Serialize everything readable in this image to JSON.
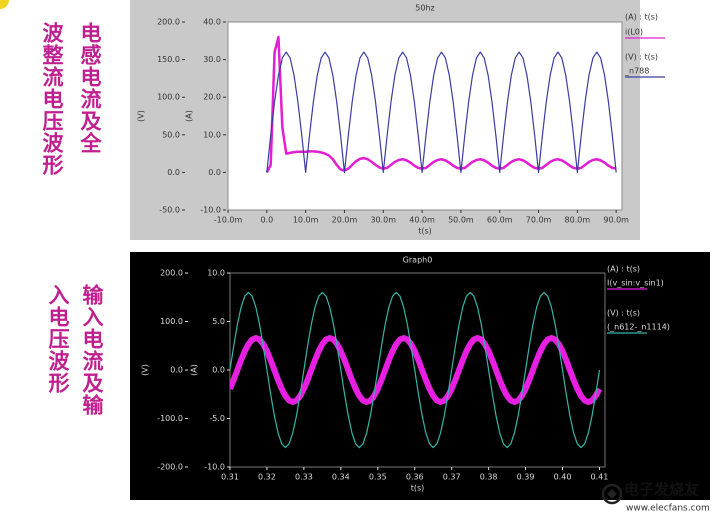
{
  "captions": [
    [
      "电感电流及全",
      "波整流电压波形"
    ],
    [
      "输入电流及输",
      "入电压波形"
    ]
  ],
  "watermark": {
    "name": "电子发烧友",
    "url": "www.elecfans.com"
  },
  "chart_data": [
    {
      "type": "line",
      "title": "50hz",
      "x_label": "t(s)",
      "y_label": "(V)",
      "y2_label": "(A)",
      "xlim": [
        -0.01,
        0.0915
      ],
      "xticks": [
        {
          "value": -0.01,
          "label": "-10.0m"
        },
        {
          "value": 0,
          "label": "0.0"
        },
        {
          "value": 0.01,
          "label": "10.0m"
        },
        {
          "value": 0.02,
          "label": "20.0m"
        },
        {
          "value": 0.03,
          "label": "30.0m"
        },
        {
          "value": 0.04,
          "label": "40.0m"
        },
        {
          "value": 0.05,
          "label": "50.0m"
        },
        {
          "value": 0.06,
          "label": "60.0m"
        },
        {
          "value": 0.07,
          "label": "70.0m"
        },
        {
          "value": 0.08,
          "label": "80.0m"
        },
        {
          "value": 0.09,
          "label": "90.0m"
        }
      ],
      "ylim": [
        -50,
        200
      ],
      "yticks": [
        {
          "value": -50,
          "label": "-50.0"
        },
        {
          "value": 0,
          "label": "0.0"
        },
        {
          "value": 50,
          "label": "50.0"
        },
        {
          "value": 100,
          "label": "100.0"
        },
        {
          "value": 150,
          "label": "150.0"
        },
        {
          "value": 200,
          "label": "200.0"
        }
      ],
      "y2lim": [
        -10,
        40
      ],
      "y2ticks": [
        {
          "value": -10,
          "label": "-10.0"
        },
        {
          "value": 0,
          "label": "0.0"
        },
        {
          "value": 10,
          "label": "10.0"
        },
        {
          "value": 20,
          "label": "20.0"
        },
        {
          "value": 30,
          "label": "30.0"
        },
        {
          "value": 40,
          "label": "40.0"
        }
      ],
      "x": [
        0,
        0.001,
        0.002,
        0.003,
        0.004,
        0.005,
        0.006,
        0.007,
        0.008,
        0.009,
        0.01,
        0.011,
        0.012,
        0.013,
        0.014,
        0.015,
        0.016,
        0.017,
        0.018,
        0.019,
        0.02,
        0.021,
        0.022,
        0.023,
        0.024,
        0.025,
        0.026,
        0.027,
        0.028,
        0.029,
        0.03,
        0.031,
        0.032,
        0.033,
        0.034,
        0.035,
        0.036,
        0.037,
        0.038,
        0.039,
        0.04,
        0.041,
        0.042,
        0.043,
        0.044,
        0.045,
        0.046,
        0.047,
        0.048,
        0.049,
        0.05,
        0.051,
        0.052,
        0.053,
        0.054,
        0.055,
        0.056,
        0.057,
        0.058,
        0.059,
        0.06,
        0.061,
        0.062,
        0.063,
        0.064,
        0.065,
        0.066,
        0.067,
        0.068,
        0.069,
        0.07,
        0.071,
        0.072,
        0.073,
        0.074,
        0.075,
        0.076,
        0.077,
        0.078,
        0.079,
        0.08,
        0.081,
        0.082,
        0.083,
        0.084,
        0.085,
        0.086,
        0.087,
        0.088,
        0.089,
        0.09
      ],
      "series": [
        {
          "header": "(A) : t(s)",
          "name": "i(L0)",
          "color": "#e21fd2",
          "axis": "y2",
          "width": 2.5,
          "values": [
            0,
            2,
            32,
            36,
            12,
            5,
            5.2,
            5.4,
            5.5,
            5.5,
            5.5,
            5.6,
            5.6,
            5.5,
            5.3,
            5,
            4.5,
            3.5,
            2,
            0.8,
            0.5,
            1,
            2,
            3,
            3.6,
            3.8,
            3.5,
            2.8,
            2,
            1.3,
            1,
            1.2,
            2,
            2.8,
            3.3,
            3.5,
            3.2,
            2.6,
            1.8,
            1.2,
            1,
            1.2,
            2,
            2.8,
            3.3,
            3.5,
            3.2,
            2.6,
            1.8,
            1.2,
            1,
            1.2,
            2,
            2.8,
            3.3,
            3.5,
            3.2,
            2.6,
            1.8,
            1.2,
            1,
            1.2,
            2,
            2.8,
            3.3,
            3.5,
            3.2,
            2.6,
            1.8,
            1.2,
            1,
            1.2,
            2,
            2.8,
            3.3,
            3.5,
            3.2,
            2.6,
            1.8,
            1.2,
            1,
            1.2,
            2,
            2.8,
            3.3,
            3.5,
            3.2,
            2.6,
            1.8,
            1.2,
            1
          ]
        },
        {
          "header": "(V) : t(s)",
          "name": "_n788",
          "color": "#3b3ba3",
          "width": 1.2,
          "values": [
            0,
            49.4,
            94,
            129.4,
            152.2,
            160,
            152.2,
            129.4,
            94,
            49.4,
            0,
            49.4,
            94,
            129.4,
            152.2,
            160,
            152.2,
            129.4,
            94,
            49.4,
            0,
            49.4,
            94,
            129.4,
            152.2,
            160,
            152.2,
            129.4,
            94,
            49.4,
            0,
            49.4,
            94,
            129.4,
            152.2,
            160,
            152.2,
            129.4,
            94,
            49.4,
            0,
            49.4,
            94,
            129.4,
            152.2,
            160,
            152.2,
            129.4,
            94,
            49.4,
            0,
            49.4,
            94,
            129.4,
            152.2,
            160,
            152.2,
            129.4,
            94,
            49.4,
            0,
            49.4,
            94,
            129.4,
            152.2,
            160,
            152.2,
            129.4,
            94,
            49.4,
            0,
            49.4,
            94,
            129.4,
            152.2,
            160,
            152.2,
            129.4,
            94,
            49.4,
            0,
            49.4,
            94,
            129.4,
            152.2,
            160,
            152.2,
            129.4,
            94,
            49.4,
            0
          ]
        }
      ]
    },
    {
      "type": "line",
      "title": "Graph0",
      "x_label": "t(s)",
      "y_label": "(V)",
      "y2_label": "(A)",
      "xlim": [
        0.31,
        0.4115
      ],
      "xticks": [
        0.31,
        0.32,
        0.33,
        0.34,
        0.35,
        0.36,
        0.37,
        0.38,
        0.39,
        {
          "value": 0.4,
          "label": "0.40"
        },
        0.41
      ],
      "ylim": [
        -200,
        200
      ],
      "yticks": [
        {
          "value": -200,
          "label": "-200.0"
        },
        {
          "value": -100,
          "label": "-100.0"
        },
        {
          "value": 0,
          "label": "0.0"
        },
        {
          "value": 100,
          "label": "100.0"
        },
        {
          "value": 200,
          "label": "200.0"
        }
      ],
      "y2lim": [
        -10,
        10
      ],
      "y2ticks": [
        {
          "value": -10,
          "label": "-10.0"
        },
        {
          "value": -5,
          "label": "-5.0"
        },
        {
          "value": 0,
          "label": "0.0"
        },
        {
          "value": 5,
          "label": "5.0"
        },
        {
          "value": 10,
          "label": "10.0"
        }
      ],
      "x": [
        0.31,
        0.311,
        0.312,
        0.313,
        0.314,
        0.315,
        0.316,
        0.317,
        0.318,
        0.319,
        0.32,
        0.321,
        0.322,
        0.323,
        0.324,
        0.325,
        0.326,
        0.327,
        0.328,
        0.329,
        0.33,
        0.331,
        0.332,
        0.333,
        0.334,
        0.335,
        0.336,
        0.337,
        0.338,
        0.339,
        0.34,
        0.341,
        0.342,
        0.343,
        0.344,
        0.345,
        0.346,
        0.347,
        0.348,
        0.349,
        0.35,
        0.351,
        0.352,
        0.353,
        0.354,
        0.355,
        0.356,
        0.357,
        0.358,
        0.359,
        0.36,
        0.361,
        0.362,
        0.363,
        0.364,
        0.365,
        0.366,
        0.367,
        0.368,
        0.369,
        0.37,
        0.371,
        0.372,
        0.373,
        0.374,
        0.375,
        0.376,
        0.377,
        0.378,
        0.379,
        0.38,
        0.381,
        0.382,
        0.383,
        0.384,
        0.385,
        0.386,
        0.387,
        0.388,
        0.389,
        0.39,
        0.391,
        0.392,
        0.393,
        0.394,
        0.395,
        0.396,
        0.397,
        0.398,
        0.399,
        0.4,
        0.401,
        0.402,
        0.403,
        0.404,
        0.405,
        0.406,
        0.407,
        0.408,
        0.409,
        0.41
      ],
      "series": [
        {
          "header": "(A) : t(s)",
          "name": "I(v_sin:v_sin1)",
          "color": "#e61fe0",
          "axis": "y2",
          "width": 6,
          "values": [
            -1.94,
            -1.02,
            0,
            1.02,
            1.94,
            2.67,
            3.14,
            3.3,
            3.14,
            2.67,
            1.94,
            1.02,
            0,
            -1.02,
            -1.94,
            -2.67,
            -3.14,
            -3.3,
            -3.14,
            -2.67,
            -1.94,
            -1.02,
            0,
            1.02,
            1.94,
            2.67,
            3.14,
            3.3,
            3.14,
            2.67,
            1.94,
            1.02,
            0,
            -1.02,
            -1.94,
            -2.67,
            -3.14,
            -3.3,
            -3.14,
            -2.67,
            -1.94,
            -1.02,
            0,
            1.02,
            1.94,
            2.67,
            3.14,
            3.3,
            3.14,
            2.67,
            1.94,
            1.02,
            0,
            -1.02,
            -1.94,
            -2.67,
            -3.14,
            -3.3,
            -3.14,
            -2.67,
            -1.94,
            -1.02,
            0,
            1.02,
            1.94,
            2.67,
            3.14,
            3.3,
            3.14,
            2.67,
            1.94,
            1.02,
            0,
            -1.02,
            -1.94,
            -2.67,
            -3.14,
            -3.3,
            -3.14,
            -2.67,
            -1.94,
            -1.02,
            0,
            1.02,
            1.94,
            2.67,
            3.14,
            3.3,
            3.14,
            2.67,
            1.94,
            1.02,
            0,
            -1.02,
            -1.94,
            -2.67,
            -3.14,
            -3.3,
            -3.14,
            -2.67,
            -1.94
          ]
        },
        {
          "header": "(V) : t(s)",
          "name": "(_n612-_n1114)",
          "color": "#35b5a4",
          "width": 1.2,
          "values": [
            0,
            49.4,
            94,
            129.4,
            152.2,
            160,
            152.2,
            129.4,
            94,
            49.4,
            0,
            -49.4,
            -94,
            -129.4,
            -152.2,
            -160,
            -152.2,
            -129.4,
            -94,
            -49.4,
            0,
            49.4,
            94,
            129.4,
            152.2,
            160,
            152.2,
            129.4,
            94,
            49.4,
            0,
            -49.4,
            -94,
            -129.4,
            -152.2,
            -160,
            -152.2,
            -129.4,
            -94,
            -49.4,
            0,
            49.4,
            94,
            129.4,
            152.2,
            160,
            152.2,
            129.4,
            94,
            49.4,
            0,
            -49.4,
            -94,
            -129.4,
            -152.2,
            -160,
            -152.2,
            -129.4,
            -94,
            -49.4,
            0,
            49.4,
            94,
            129.4,
            152.2,
            160,
            152.2,
            129.4,
            94,
            49.4,
            0,
            -49.4,
            -94,
            -129.4,
            -152.2,
            -160,
            -152.2,
            -129.4,
            -94,
            -49.4,
            0,
            49.4,
            94,
            129.4,
            152.2,
            160,
            152.2,
            129.4,
            94,
            49.4,
            0,
            -49.4,
            -94,
            -129.4,
            -152.2,
            -160,
            -152.2,
            -129.4,
            -94,
            -49.4,
            0
          ]
        }
      ]
    }
  ]
}
